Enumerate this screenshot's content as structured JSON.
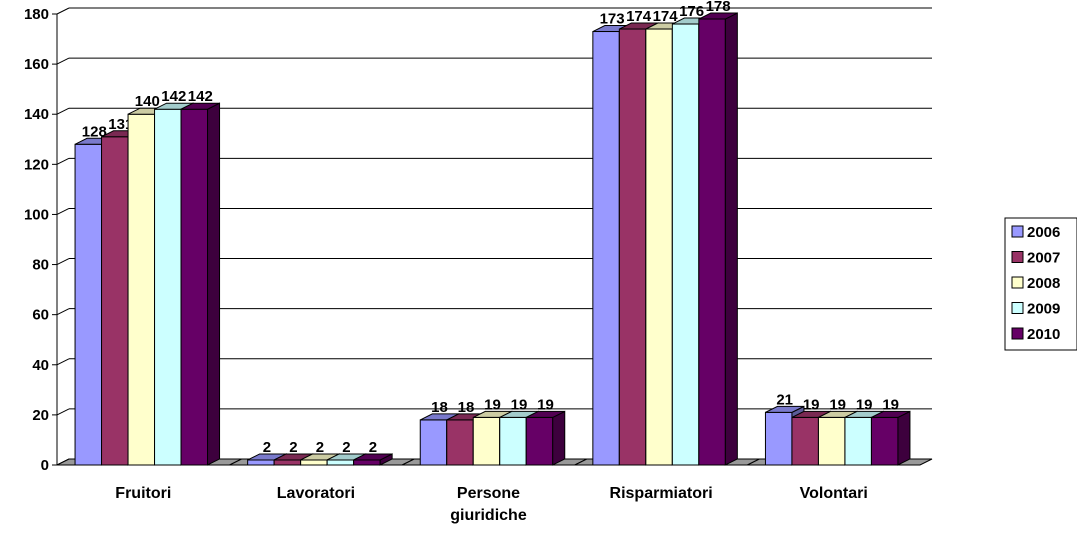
{
  "chart_data": {
    "type": "bar",
    "categories": [
      "Fruitori",
      "Lavoratori",
      "Persone giuridiche",
      "Risparmiatori",
      "Volontari"
    ],
    "category_lines": [
      [
        "Fruitori"
      ],
      [
        "Lavoratori"
      ],
      [
        "Persone",
        "giuridiche"
      ],
      [
        "Risparmiatori"
      ],
      [
        "Volontari"
      ]
    ],
    "series": [
      {
        "name": "2006",
        "values": [
          128,
          2,
          18,
          173,
          21
        ],
        "color": "#9999ff"
      },
      {
        "name": "2007",
        "values": [
          131,
          2,
          18,
          174,
          19
        ],
        "color": "#993366"
      },
      {
        "name": "2008",
        "values": [
          140,
          2,
          19,
          174,
          19
        ],
        "color": "#ffffcc"
      },
      {
        "name": "2009",
        "values": [
          142,
          2,
          19,
          176,
          19
        ],
        "color": "#ccffff"
      },
      {
        "name": "2010",
        "values": [
          142,
          2,
          19,
          178,
          19
        ],
        "color": "#660066"
      }
    ],
    "title": "",
    "xlabel": "",
    "ylabel": "",
    "ylim": [
      0,
      180
    ],
    "yticks": [
      0,
      20,
      40,
      60,
      80,
      100,
      120,
      140,
      160,
      180
    ],
    "grid": true,
    "legend_position": "right",
    "style": "3d-clustered-column"
  }
}
